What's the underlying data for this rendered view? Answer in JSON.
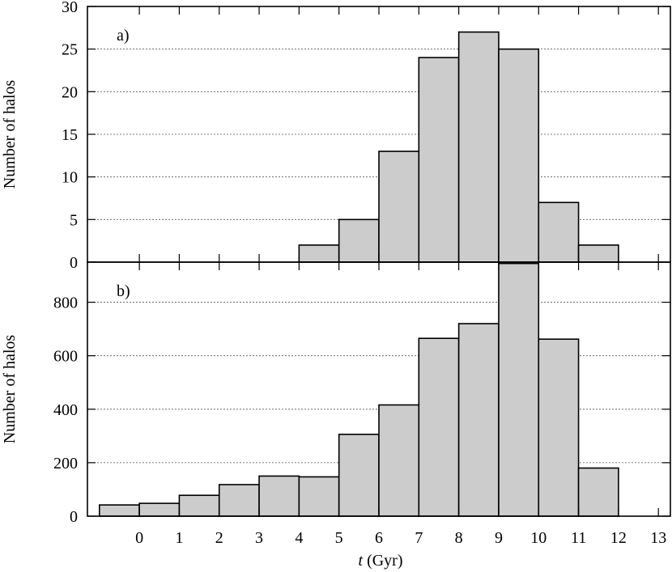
{
  "chart_data": [
    {
      "type": "bar",
      "panel_label": "a)",
      "ylabel": "Number of halos",
      "ylim": [
        0,
        30
      ],
      "yticks": [
        0,
        5,
        10,
        15,
        20,
        25,
        30
      ],
      "xlim": [
        -1.3,
        13.3
      ],
      "bins": [
        {
          "x": 4.5,
          "value": 2
        },
        {
          "x": 5.5,
          "value": 5
        },
        {
          "x": 6.5,
          "value": 13
        },
        {
          "x": 7.5,
          "value": 24
        },
        {
          "x": 8.5,
          "value": 27
        },
        {
          "x": 9.5,
          "value": 25
        },
        {
          "x": 10.5,
          "value": 7
        },
        {
          "x": 11.5,
          "value": 2
        }
      ],
      "bin_width": 1,
      "grid": "horizontal-dotted"
    },
    {
      "type": "bar",
      "panel_label": "b)",
      "ylabel": "Number of halos",
      "xlabel_italic": "t",
      "xlabel_rest": " (Gyr)",
      "ylim": [
        0,
        950
      ],
      "yticks": [
        0,
        200,
        400,
        600,
        800
      ],
      "xlim": [
        -1.3,
        13.3
      ],
      "xticks": [
        0,
        1,
        2,
        3,
        4,
        5,
        6,
        7,
        8,
        9,
        10,
        11,
        12,
        13
      ],
      "bins": [
        {
          "x": -0.5,
          "value": 42
        },
        {
          "x": 0.5,
          "value": 48
        },
        {
          "x": 1.5,
          "value": 78
        },
        {
          "x": 2.5,
          "value": 118
        },
        {
          "x": 3.5,
          "value": 150
        },
        {
          "x": 4.5,
          "value": 147
        },
        {
          "x": 5.5,
          "value": 306
        },
        {
          "x": 6.5,
          "value": 416
        },
        {
          "x": 7.5,
          "value": 665
        },
        {
          "x": 8.5,
          "value": 720
        },
        {
          "x": 9.5,
          "value": 945
        },
        {
          "x": 10.5,
          "value": 662
        },
        {
          "x": 11.5,
          "value": 180
        }
      ],
      "bin_width": 1,
      "grid": "horizontal-dotted"
    }
  ]
}
